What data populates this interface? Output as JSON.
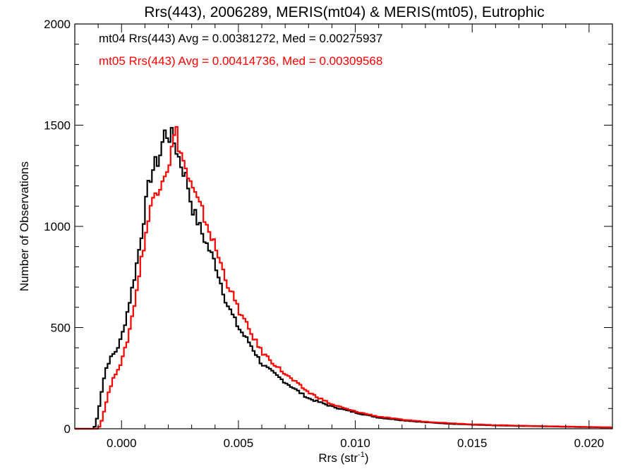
{
  "chart_data": {
    "type": "line",
    "title": "Rrs(443), 2006289, MERIS(mt04) & MERIS(mt05), Eutrophic",
    "xlabel": "Rrs (str",
    "xlabel_sup": "-1",
    "xlabel_close": ")",
    "ylabel": "Number of Observations",
    "xlim": [
      -0.002,
      0.021
    ],
    "ylim": [
      0,
      2000
    ],
    "x_ticks": [
      0.0,
      0.005,
      0.01,
      0.015,
      0.02
    ],
    "x_tick_labels": [
      "0.000",
      "0.005",
      "0.010",
      "0.015",
      "0.020"
    ],
    "y_ticks": [
      0,
      500,
      1000,
      1500,
      2000
    ],
    "y_tick_labels": [
      "0",
      "500",
      "1000",
      "1500",
      "2000"
    ],
    "grid": false,
    "legend": "top-left",
    "annotations": [
      {
        "text": "mt04 Rrs(443) Avg = 0.00381272, Med = 0.00275937",
        "color": "#000000"
      },
      {
        "text": "mt05 Rrs(443) Avg = 0.00414736, Med = 0.00309568",
        "color": "#ff0000"
      }
    ],
    "series": [
      {
        "color": "#000000",
        "points": [
          [
            -0.002,
            0
          ],
          [
            -0.0012,
            0
          ],
          [
            -0.0011,
            20
          ],
          [
            -0.001,
            80
          ],
          [
            -0.0009,
            150
          ],
          [
            -0.0008,
            220
          ],
          [
            -0.0007,
            280
          ],
          [
            -0.0006,
            320
          ],
          [
            -0.0004,
            360
          ],
          [
            -0.0002,
            390
          ],
          [
            0.0,
            450
          ],
          [
            0.0002,
            550
          ],
          [
            0.0004,
            660
          ],
          [
            0.0006,
            780
          ],
          [
            0.0008,
            920
          ],
          [
            0.001,
            1080
          ],
          [
            0.0012,
            1230
          ],
          [
            0.0014,
            1300
          ],
          [
            0.0016,
            1330
          ],
          [
            0.0018,
            1440
          ],
          [
            0.0019,
            1480
          ],
          [
            0.002,
            1430
          ],
          [
            0.0021,
            1460
          ],
          [
            0.0023,
            1400
          ],
          [
            0.0025,
            1320
          ],
          [
            0.0028,
            1230
          ],
          [
            0.003,
            1100
          ],
          [
            0.0035,
            950
          ],
          [
            0.004,
            820
          ],
          [
            0.0045,
            620
          ],
          [
            0.005,
            500
          ],
          [
            0.0055,
            420
          ],
          [
            0.006,
            320
          ],
          [
            0.007,
            230
          ],
          [
            0.008,
            150
          ],
          [
            0.009,
            110
          ],
          [
            0.01,
            80
          ],
          [
            0.011,
            55
          ],
          [
            0.012,
            42
          ],
          [
            0.013,
            32
          ],
          [
            0.014,
            25
          ],
          [
            0.015,
            20
          ],
          [
            0.016,
            16
          ],
          [
            0.018,
            12
          ],
          [
            0.02,
            8
          ],
          [
            0.021,
            6
          ]
        ]
      },
      {
        "color": "#ff0000",
        "points": [
          [
            -0.002,
            0
          ],
          [
            -0.001,
            0
          ],
          [
            -0.0009,
            20
          ],
          [
            -0.0008,
            60
          ],
          [
            -0.0007,
            110
          ],
          [
            -0.0006,
            160
          ],
          [
            -0.0004,
            230
          ],
          [
            -0.0002,
            290
          ],
          [
            0.0,
            330
          ],
          [
            0.0002,
            410
          ],
          [
            0.0004,
            520
          ],
          [
            0.0006,
            650
          ],
          [
            0.0008,
            800
          ],
          [
            0.001,
            940
          ],
          [
            0.0012,
            1060
          ],
          [
            0.0014,
            1160
          ],
          [
            0.0016,
            1200
          ],
          [
            0.0018,
            1260
          ],
          [
            0.002,
            1300
          ],
          [
            0.0022,
            1400
          ],
          [
            0.0023,
            1490
          ],
          [
            0.0024,
            1430
          ],
          [
            0.0026,
            1340
          ],
          [
            0.0028,
            1260
          ],
          [
            0.003,
            1190
          ],
          [
            0.0035,
            1060
          ],
          [
            0.004,
            900
          ],
          [
            0.0045,
            730
          ],
          [
            0.005,
            590
          ],
          [
            0.0055,
            480
          ],
          [
            0.006,
            380
          ],
          [
            0.007,
            270
          ],
          [
            0.008,
            180
          ],
          [
            0.009,
            120
          ],
          [
            0.01,
            85
          ],
          [
            0.011,
            60
          ],
          [
            0.012,
            45
          ],
          [
            0.013,
            35
          ],
          [
            0.014,
            28
          ],
          [
            0.015,
            22
          ],
          [
            0.016,
            18
          ],
          [
            0.018,
            13
          ],
          [
            0.02,
            9
          ],
          [
            0.021,
            7
          ]
        ]
      }
    ]
  }
}
